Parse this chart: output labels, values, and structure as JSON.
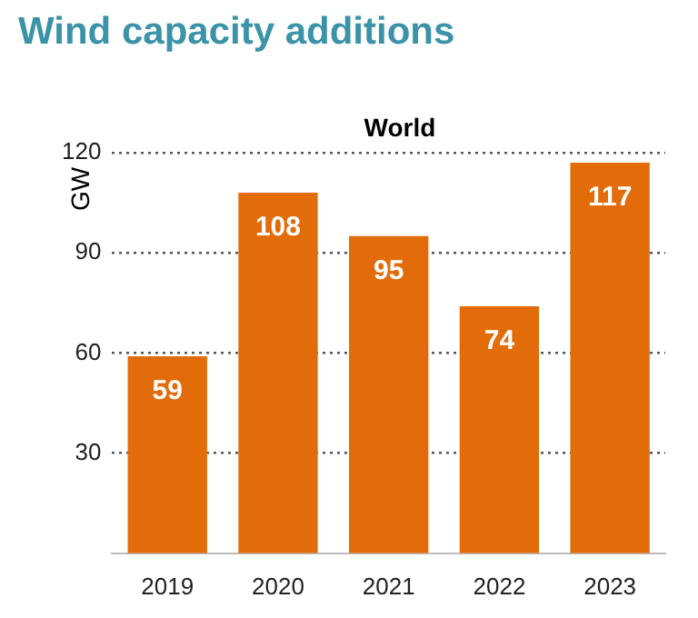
{
  "chart_data": {
    "type": "bar",
    "title": "Wind capacity additions",
    "subtitle": "World",
    "ylabel": "GW",
    "categories": [
      "2019",
      "2020",
      "2021",
      "2022",
      "2023"
    ],
    "values": [
      59,
      108,
      95,
      74,
      117
    ],
    "color": "#e36c0a",
    "ylim": [
      0,
      120
    ],
    "yticks": [
      30,
      60,
      90,
      120
    ],
    "grid": "y",
    "data_labels": true,
    "legend": false
  }
}
